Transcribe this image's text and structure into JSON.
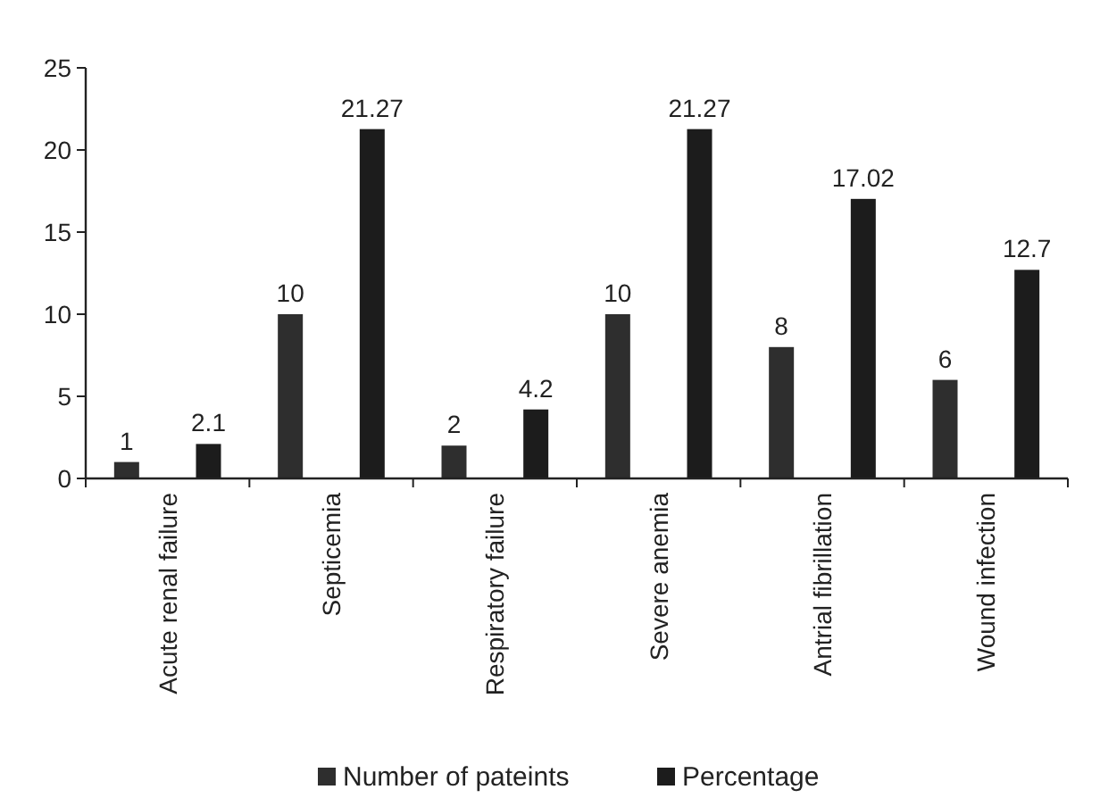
{
  "chart_data": {
    "type": "bar",
    "categories": [
      "Acute renal failure",
      "Septicemia",
      "Respiratory failure",
      "Severe anemia",
      "Antrial fibrillation",
      "Wound infection"
    ],
    "series": [
      {
        "name": "Number of pateints",
        "color": "#2e2e2e",
        "values": [
          1,
          10,
          2,
          10,
          8,
          6
        ]
      },
      {
        "name": "Percentage",
        "color": "#1c1c1c",
        "values": [
          2.1,
          21.27,
          4.2,
          21.27,
          17.02,
          12.7
        ]
      }
    ],
    "ylim": [
      0,
      25
    ],
    "yticks": [
      0,
      5,
      10,
      15,
      20,
      25
    ],
    "data_labels": true,
    "grid": false,
    "legend": "bottom"
  }
}
